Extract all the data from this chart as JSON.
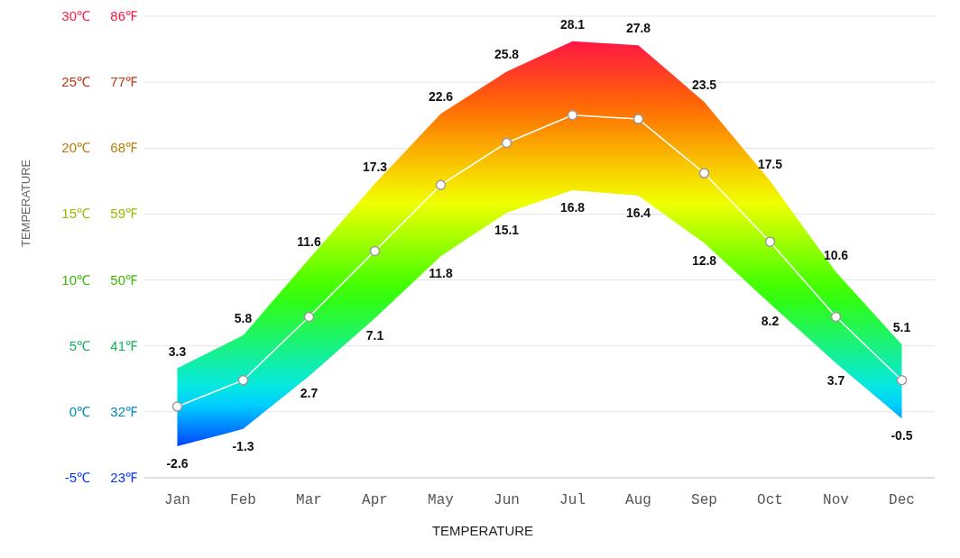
{
  "chart_data": {
    "type": "line",
    "ylabel": "TEMPERATURE",
    "categories": [
      "Jan",
      "Feb",
      "Mar",
      "Apr",
      "May",
      "Jun",
      "Jul",
      "Aug",
      "Sep",
      "Oct",
      "Nov",
      "Dec"
    ],
    "series": [
      {
        "name": "TEMPERATURE",
        "color": "#ffffff",
        "values": [
          0.4,
          2.4,
          7.2,
          12.2,
          17.2,
          20.4,
          22.5,
          22.2,
          18.1,
          12.9,
          7.2,
          2.4
        ],
        "lower": [
          -2.6,
          -1.3,
          2.7,
          7.1,
          11.8,
          15.1,
          16.8,
          16.4,
          12.8,
          8.2,
          3.7,
          -0.5
        ],
        "upper": [
          3.3,
          5.8,
          11.6,
          17.3,
          22.6,
          25.8,
          28.1,
          27.8,
          23.5,
          17.5,
          10.6,
          5.1
        ]
      }
    ],
    "ylim": [
      -5,
      30
    ],
    "yticks": [
      {
        "value": -5,
        "label": "-5℃"
      },
      {
        "value": 0,
        "label": "0℃"
      },
      {
        "value": 5,
        "label": "5℃"
      },
      {
        "value": 10,
        "label": "10℃"
      },
      {
        "value": 15,
        "label": "15℃"
      },
      {
        "value": 20,
        "label": "20℃"
      },
      {
        "value": 25,
        "label": "25℃"
      },
      {
        "value": 30,
        "label": "30℃"
      }
    ],
    "y2lim": [
      23,
      86
    ],
    "y2ticks": [
      {
        "value": 23,
        "label": "23℉"
      },
      {
        "value": 32,
        "label": "32℉"
      },
      {
        "value": 41,
        "label": "41℉"
      },
      {
        "value": 50,
        "label": "50℉"
      },
      {
        "value": 59,
        "label": "59℉"
      },
      {
        "value": 68,
        "label": "68℉"
      },
      {
        "value": 77,
        "label": "77℉"
      },
      {
        "value": 86,
        "label": "86℉"
      }
    ],
    "annotations": [
      {
        "text": "3.3",
        "x": "Jan",
        "y": 3.3
      },
      {
        "text": "5.8",
        "x": "Feb",
        "y": 5.8
      },
      {
        "text": "11.6",
        "x": "Mar",
        "y": 11.6
      },
      {
        "text": "17.3",
        "x": "Apr",
        "y": 17.3
      },
      {
        "text": "22.6",
        "x": "May",
        "y": 22.6
      },
      {
        "text": "25.8",
        "x": "Jun",
        "y": 25.8
      },
      {
        "text": "28.1",
        "x": "Jul",
        "y": 28.1
      },
      {
        "text": "27.8",
        "x": "Aug",
        "y": 27.8
      },
      {
        "text": "23.5",
        "x": "Sep",
        "y": 23.5
      },
      {
        "text": "17.5",
        "x": "Oct",
        "y": 17.5
      },
      {
        "text": "10.6",
        "x": "Nov",
        "y": 10.6
      },
      {
        "text": "5.1",
        "x": "Dec",
        "y": 5.1
      },
      {
        "text": "-2.6",
        "x": "Jan",
        "y": -2.6
      },
      {
        "text": "-1.3",
        "x": "Feb",
        "y": -1.3
      },
      {
        "text": "2.7",
        "x": "Mar",
        "y": 2.7
      },
      {
        "text": "7.1",
        "x": "Apr",
        "y": 7.1
      },
      {
        "text": "11.8",
        "x": "May",
        "y": 11.8
      },
      {
        "text": "15.1",
        "x": "Jun",
        "y": 15.1
      },
      {
        "text": "16.8",
        "x": "Jul",
        "y": 16.8
      },
      {
        "text": "16.4",
        "x": "Aug",
        "y": 16.4
      },
      {
        "text": "12.8",
        "x": "Sep",
        "y": 12.8
      },
      {
        "text": "8.2",
        "x": "Oct",
        "y": 8.2
      },
      {
        "text": "3.7",
        "x": "Nov",
        "y": 3.7
      },
      {
        "text": "-0.5",
        "x": "Dec",
        "y": -0.5
      }
    ],
    "grid": "y",
    "legend": "bottom",
    "marker": "circle",
    "line_style": "solid"
  }
}
